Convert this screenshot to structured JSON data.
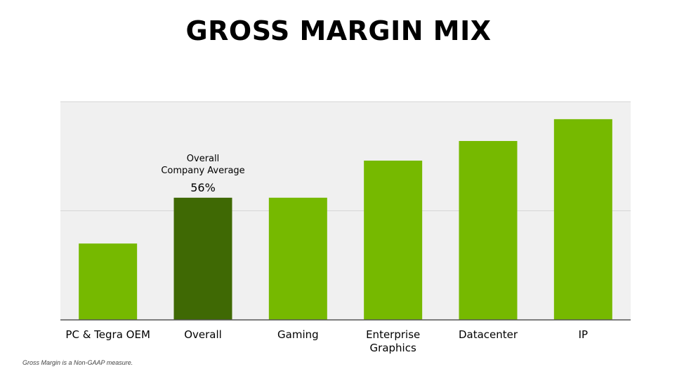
{
  "slide": {
    "title": "GROSS MARGIN MIX",
    "footnote": "Gross Margin is a Non-GAAP measure."
  },
  "colors": {
    "bar": "#76b900",
    "highlight_bar": "#3f6904",
    "plot_background": "#f0f0f0",
    "gridline": "#d6d6d6",
    "axis": "#555555",
    "text": "#000000"
  },
  "chart_data": {
    "type": "bar",
    "title": "GROSS MARGIN MIX",
    "xlabel": "",
    "ylabel": "",
    "ylim": [
      0,
      100
    ],
    "grid": true,
    "categories": [
      "PC & Tegra OEM",
      "Overall",
      "Gaming",
      "Enterprise Graphics",
      "Datacenter",
      "IP"
    ],
    "values": [
      35,
      56,
      56,
      73,
      82,
      92
    ],
    "highlight_index": 1,
    "annotation": {
      "category": "Overall",
      "lines": [
        "Overall",
        "Company Average"
      ],
      "value_label": "56%"
    }
  }
}
